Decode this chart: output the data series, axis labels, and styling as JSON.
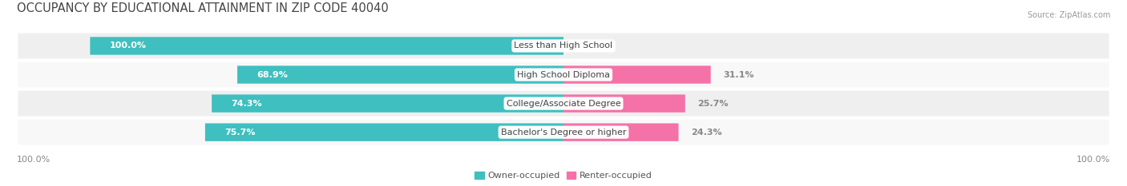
{
  "title": "OCCUPANCY BY EDUCATIONAL ATTAINMENT IN ZIP CODE 40040",
  "source": "Source: ZipAtlas.com",
  "categories": [
    "Less than High School",
    "High School Diploma",
    "College/Associate Degree",
    "Bachelor's Degree or higher"
  ],
  "owner_pct": [
    100.0,
    68.9,
    74.3,
    75.7
  ],
  "renter_pct": [
    0.0,
    31.1,
    25.7,
    24.3
  ],
  "owner_color": "#3FBFBF",
  "renter_color": "#F472A8",
  "row_bg_color": "#EFEFEF",
  "row_alt_color": "#F8F8F8",
  "axis_label_left": "100.0%",
  "axis_label_right": "100.0%",
  "legend_owner": "Owner-occupied",
  "legend_renter": "Renter-occupied",
  "title_fontsize": 10.5,
  "bar_label_fontsize": 8,
  "category_fontsize": 8,
  "legend_fontsize": 8,
  "source_fontsize": 7
}
